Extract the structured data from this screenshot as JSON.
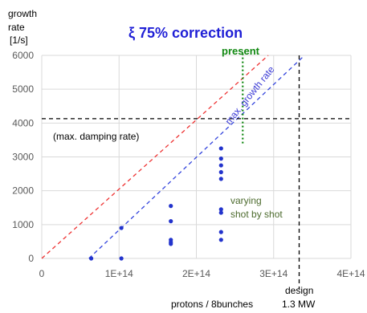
{
  "chart_data": {
    "type": "scatter",
    "title": "ξ  75% correction",
    "ylabel_lines": [
      "growth",
      "rate",
      "[1/s]"
    ],
    "xlabel": "protons / 8bunches",
    "xlim": [
      0,
      400000000000000.0
    ],
    "ylim": [
      0,
      6000
    ],
    "x_ticks": [
      0,
      100000000000000.0,
      200000000000000.0,
      300000000000000.0,
      400000000000000.0
    ],
    "x_tick_labels": [
      "0",
      "1E+14",
      "2E+14",
      "3E+14",
      "4E+14"
    ],
    "y_ticks": [
      0,
      1000,
      2000,
      3000,
      4000,
      5000,
      6000
    ],
    "y_tick_labels": [
      "0",
      "1000",
      "2000",
      "3000",
      "4000",
      "5000",
      "6000"
    ],
    "grid": true,
    "series": [
      {
        "color": "#2233cc",
        "points": [
          [
            64000000000000.0,
            0
          ],
          [
            103000000000000.0,
            0
          ],
          [
            103000000000000.0,
            900
          ],
          [
            167000000000000.0,
            1550
          ],
          [
            167000000000000.0,
            1100
          ],
          [
            167000000000000.0,
            550
          ],
          [
            167000000000000.0,
            480
          ],
          [
            167000000000000.0,
            430
          ],
          [
            232000000000000.0,
            3250
          ],
          [
            232000000000000.0,
            2950
          ],
          [
            232000000000000.0,
            2750
          ],
          [
            232000000000000.0,
            2550
          ],
          [
            232000000000000.0,
            2350
          ],
          [
            232000000000000.0,
            1450
          ],
          [
            232000000000000.0,
            1350
          ],
          [
            232000000000000.0,
            780
          ],
          [
            232000000000000.0,
            550
          ]
        ]
      }
    ],
    "lines": [
      {
        "color": "#ee3333",
        "dash": "dashed",
        "from": [
          0,
          0
        ],
        "to": [
          293000000000000.0,
          6000
        ]
      },
      {
        "color": "#3344dd",
        "dash": "dashed",
        "from": [
          61000000000000.0,
          0
        ],
        "to": [
          340000000000000.0,
          6000
        ],
        "label": "max. growth rate"
      },
      {
        "color": "#000000",
        "dash": "dashed",
        "from": [
          0,
          4130
        ],
        "to": [
          400000000000000.0,
          4130
        ],
        "label": "(max. damping rate)"
      },
      {
        "color": "#118811",
        "dash": "dotted",
        "from": [
          260000000000000.0,
          3400
        ],
        "to": [
          260000000000000.0,
          6100
        ],
        "label": "present"
      },
      {
        "color": "#000000",
        "dash": "dashed",
        "from": [
          333000000000000.0,
          6000
        ],
        "to": [
          333000000000000.0,
          -900
        ],
        "label": "design"
      }
    ],
    "annotations": {
      "present": "present",
      "max_growth": "max. growth rate",
      "max_damping": "(max. damping rate)",
      "varying_lines": [
        "varying",
        "shot by shot"
      ],
      "design_lines": [
        "design",
        "1.3 MW"
      ]
    }
  }
}
